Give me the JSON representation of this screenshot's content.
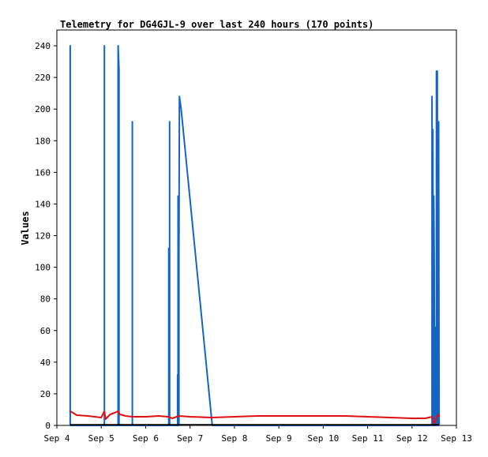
{
  "chart_data": {
    "type": "line",
    "title": "Telemetry for DG4GJL-9 over last 240 hours (170 points)",
    "xlabel": "",
    "ylabel": "Values",
    "ylim": [
      0,
      250
    ],
    "xlim": [
      0,
      9
    ],
    "yticks": [
      0,
      20,
      40,
      60,
      80,
      100,
      120,
      140,
      160,
      180,
      200,
      220,
      240
    ],
    "xticks": [
      {
        "x": 0,
        "label": "Sep 4"
      },
      {
        "x": 1,
        "label": "Sep 5"
      },
      {
        "x": 2,
        "label": "Sep 6"
      },
      {
        "x": 3,
        "label": "Sep 7"
      },
      {
        "x": 4,
        "label": "Sep 8"
      },
      {
        "x": 5,
        "label": "Sep 9"
      },
      {
        "x": 6,
        "label": "Sep 10"
      },
      {
        "x": 7,
        "label": "Sep 11"
      },
      {
        "x": 8,
        "label": "Sep 12"
      },
      {
        "x": 9,
        "label": "Sep 13"
      }
    ],
    "grid": false,
    "colors": {
      "series1": "#1565c0",
      "series2": "#e01010",
      "series3": "#000000"
    },
    "series": [
      {
        "color": "#1565c0",
        "points": [
          [
            0.3,
            0
          ],
          [
            0.3,
            240
          ],
          [
            0.3,
            0
          ],
          [
            1.07,
            0
          ],
          [
            1.07,
            240
          ],
          [
            1.07,
            0
          ],
          [
            1.38,
            0
          ],
          [
            1.38,
            240
          ],
          [
            1.4,
            225
          ],
          [
            1.4,
            0
          ],
          [
            1.7,
            0
          ],
          [
            1.7,
            192
          ],
          [
            1.7,
            0
          ],
          [
            2.52,
            0
          ],
          [
            2.52,
            112
          ],
          [
            2.52,
            0
          ],
          [
            2.54,
            0
          ],
          [
            2.54,
            192
          ],
          [
            2.54,
            0
          ],
          [
            2.72,
            0
          ],
          [
            2.72,
            32
          ],
          [
            2.72,
            0
          ],
          [
            2.73,
            0
          ],
          [
            2.73,
            145
          ],
          [
            2.73,
            0
          ],
          [
            2.75,
            0
          ],
          [
            2.75,
            105
          ],
          [
            2.76,
            208
          ],
          [
            2.8,
            200
          ],
          [
            3.5,
            0
          ],
          [
            8.45,
            0
          ],
          [
            8.45,
            208
          ],
          [
            8.46,
            0
          ],
          [
            8.47,
            0
          ],
          [
            8.47,
            187
          ],
          [
            8.48,
            0
          ],
          [
            8.49,
            0
          ],
          [
            8.49,
            145
          ],
          [
            8.5,
            105
          ],
          [
            8.51,
            0
          ],
          [
            8.53,
            0
          ],
          [
            8.53,
            62
          ],
          [
            8.54,
            0
          ],
          [
            8.55,
            0
          ],
          [
            8.55,
            224
          ],
          [
            8.56,
            20
          ],
          [
            8.57,
            224
          ],
          [
            8.58,
            0
          ],
          [
            8.6,
            0
          ],
          [
            8.6,
            192
          ],
          [
            8.61,
            0
          ]
        ]
      },
      {
        "color": "#e01010",
        "points": [
          [
            0.3,
            9
          ],
          [
            0.45,
            6.5
          ],
          [
            0.7,
            6
          ],
          [
            1.0,
            5
          ],
          [
            1.07,
            9
          ],
          [
            1.1,
            4
          ],
          [
            1.2,
            7
          ],
          [
            1.3,
            8
          ],
          [
            1.38,
            9
          ],
          [
            1.42,
            7
          ],
          [
            1.55,
            6
          ],
          [
            1.7,
            5.5
          ],
          [
            2.0,
            5.5
          ],
          [
            2.3,
            6
          ],
          [
            2.5,
            5.5
          ],
          [
            2.6,
            4.5
          ],
          [
            2.75,
            6
          ],
          [
            3.0,
            5.5
          ],
          [
            3.5,
            5
          ],
          [
            4.0,
            5.5
          ],
          [
            4.5,
            6
          ],
          [
            5.5,
            6
          ],
          [
            6.5,
            6
          ],
          [
            7.0,
            5.5
          ],
          [
            7.5,
            5
          ],
          [
            8.0,
            4.5
          ],
          [
            8.3,
            4.5
          ],
          [
            8.45,
            5.5
          ],
          [
            8.5,
            1
          ],
          [
            8.55,
            5
          ],
          [
            8.6,
            7
          ],
          [
            8.61,
            5.5
          ]
        ]
      },
      {
        "color": "#000000",
        "points": [
          [
            0.3,
            0.4
          ],
          [
            8.61,
            0.4
          ]
        ]
      }
    ]
  }
}
